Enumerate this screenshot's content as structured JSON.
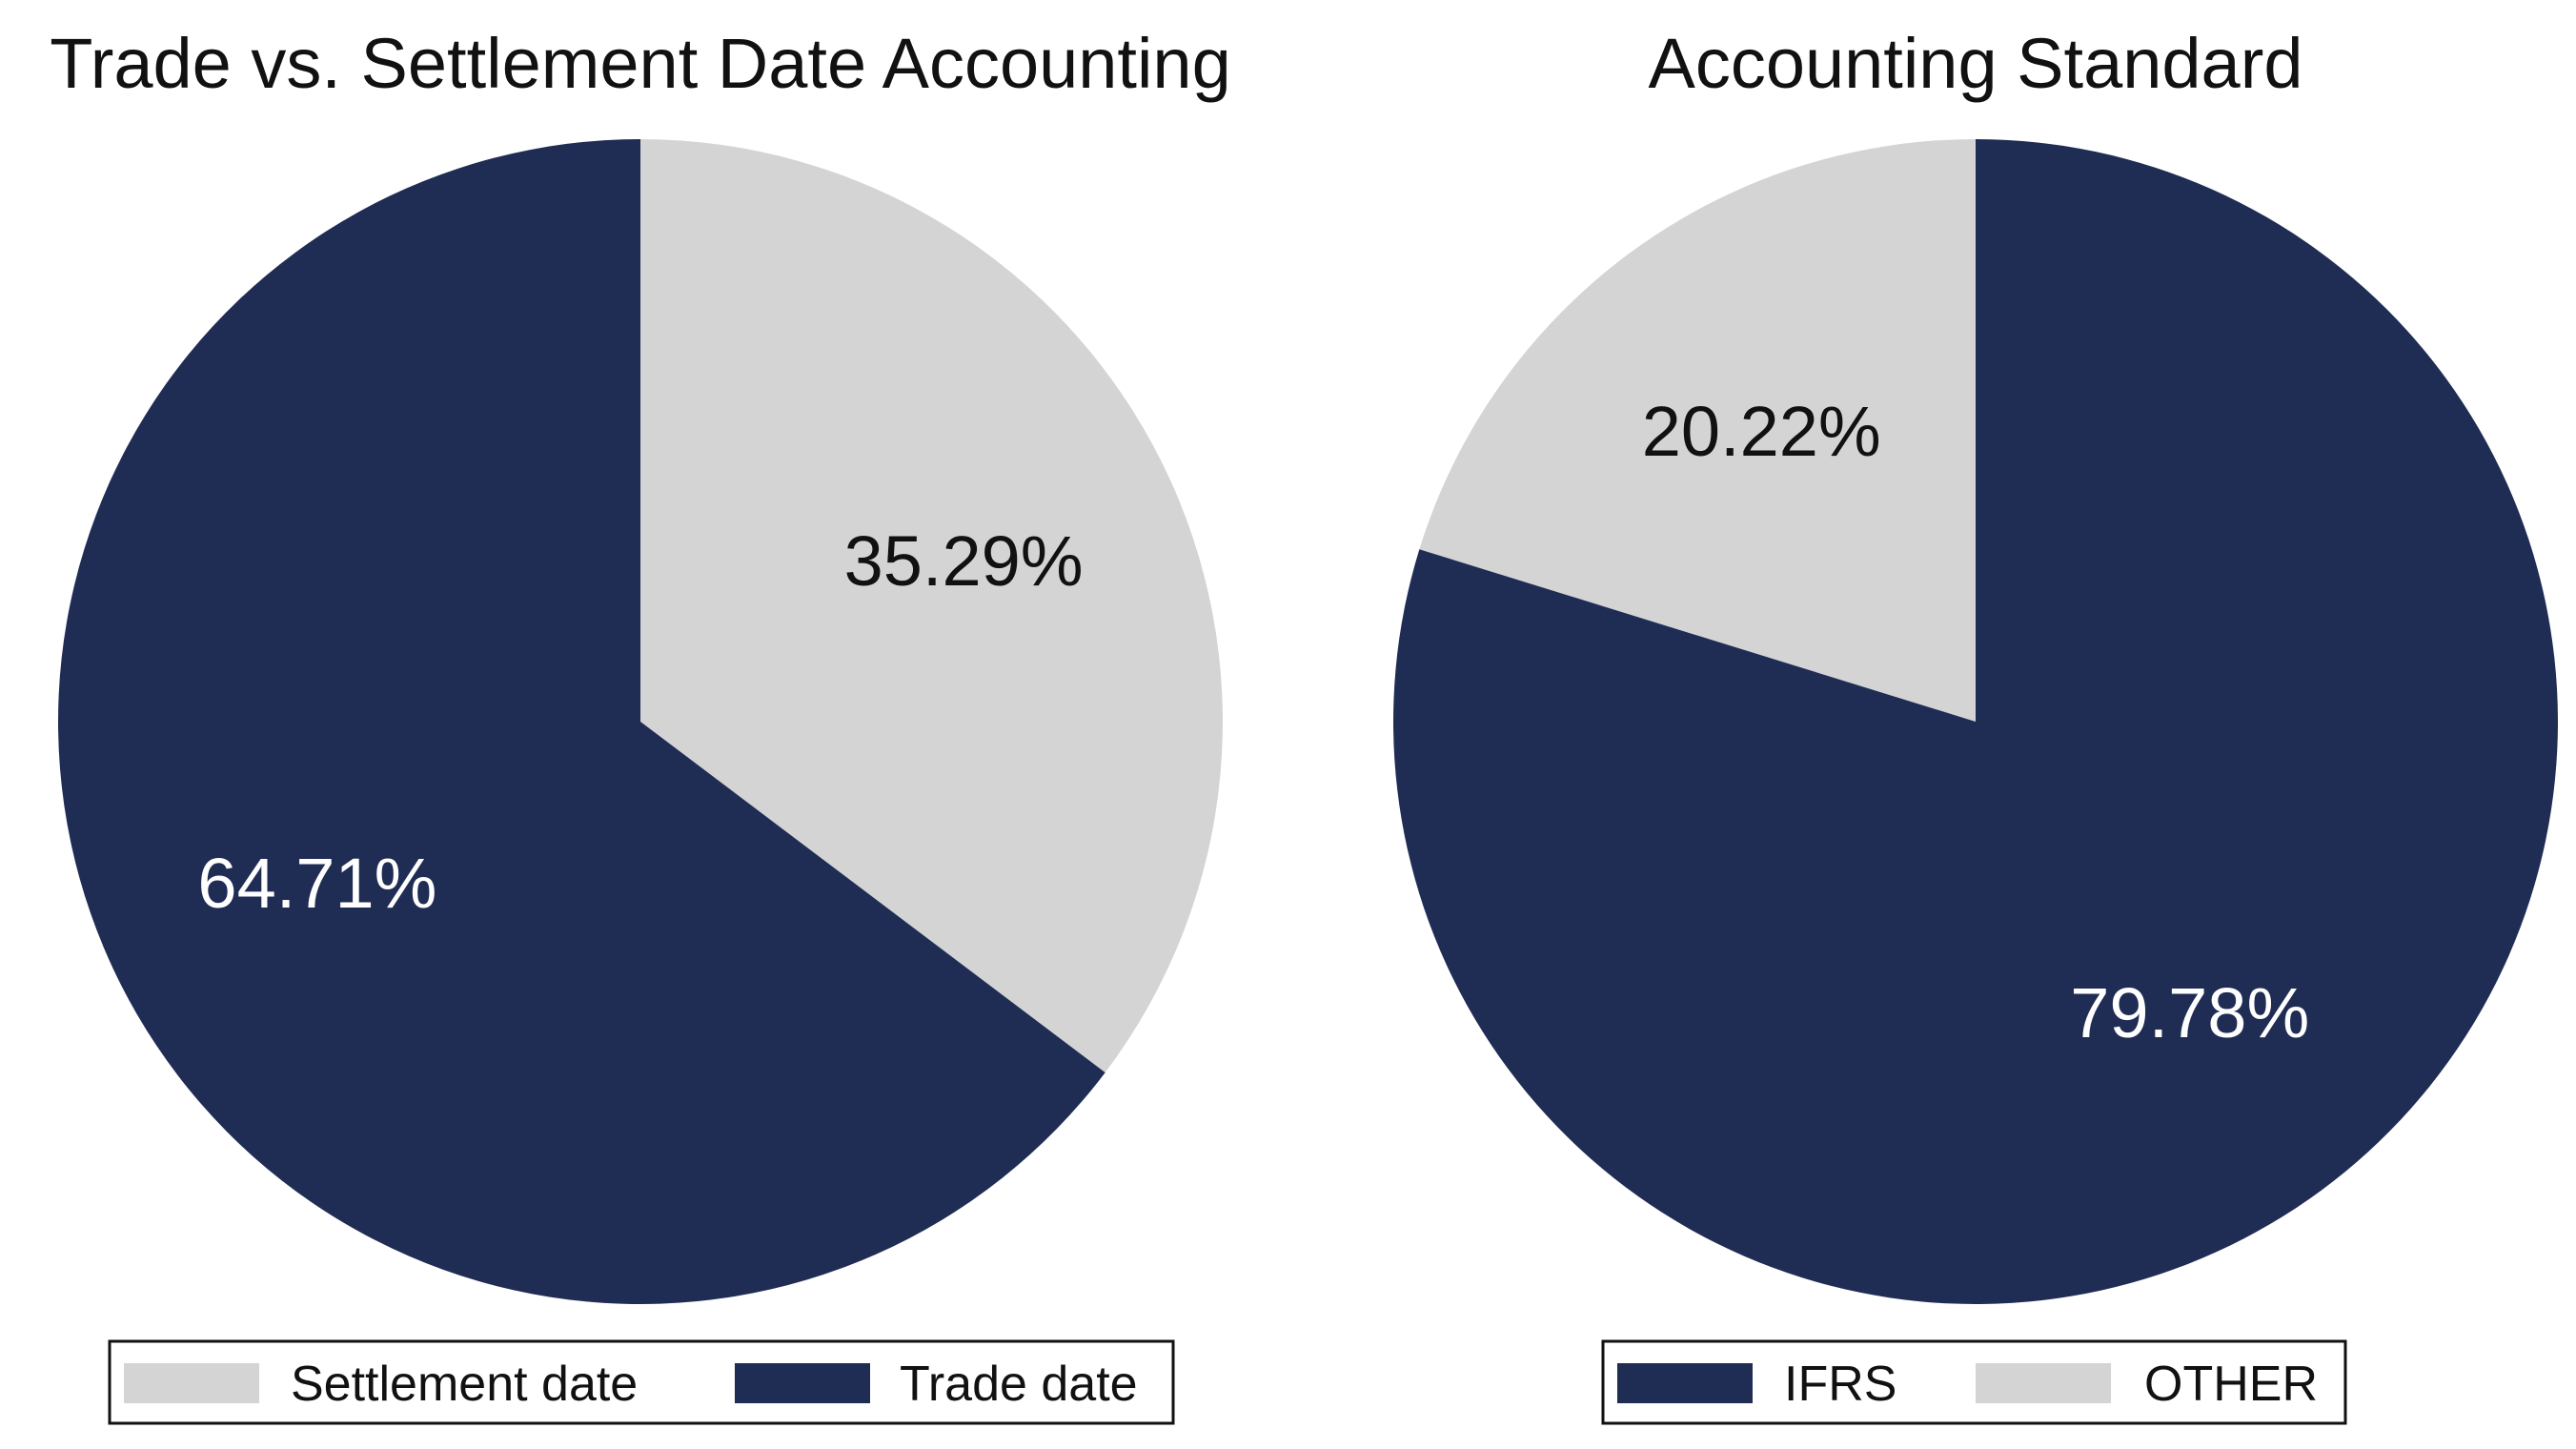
{
  "chart_data": [
    {
      "type": "pie",
      "title": "Trade vs. Settlement Date Accounting",
      "start_angle_deg": 90,
      "direction": "clockwise",
      "slices": [
        {
          "name": "Settlement date",
          "value": 35.29,
          "label": "35.29%",
          "color": "#d4d4d4",
          "label_color": "#111111"
        },
        {
          "name": "Trade date",
          "value": 64.71,
          "label": "64.71%",
          "color": "#1f2c54",
          "label_color": "#ffffff"
        }
      ],
      "legend": {
        "position": "bottom",
        "entries": [
          {
            "name": "Settlement date",
            "color": "#d4d4d4"
          },
          {
            "name": "Trade date",
            "color": "#1f2c54"
          }
        ]
      }
    },
    {
      "type": "pie",
      "title": "Accounting Standard",
      "start_angle_deg": 90,
      "direction": "counterclockwise",
      "slices": [
        {
          "name": "OTHER",
          "value": 20.22,
          "label": "20.22%",
          "color": "#d4d4d4",
          "label_color": "#111111"
        },
        {
          "name": "IFRS",
          "value": 79.78,
          "label": "79.78%",
          "color": "#1f2c54",
          "label_color": "#ffffff"
        }
      ],
      "legend": {
        "position": "bottom",
        "entries": [
          {
            "name": "IFRS",
            "color": "#1f2c54"
          },
          {
            "name": "OTHER",
            "color": "#d4d4d4"
          }
        ]
      }
    }
  ]
}
